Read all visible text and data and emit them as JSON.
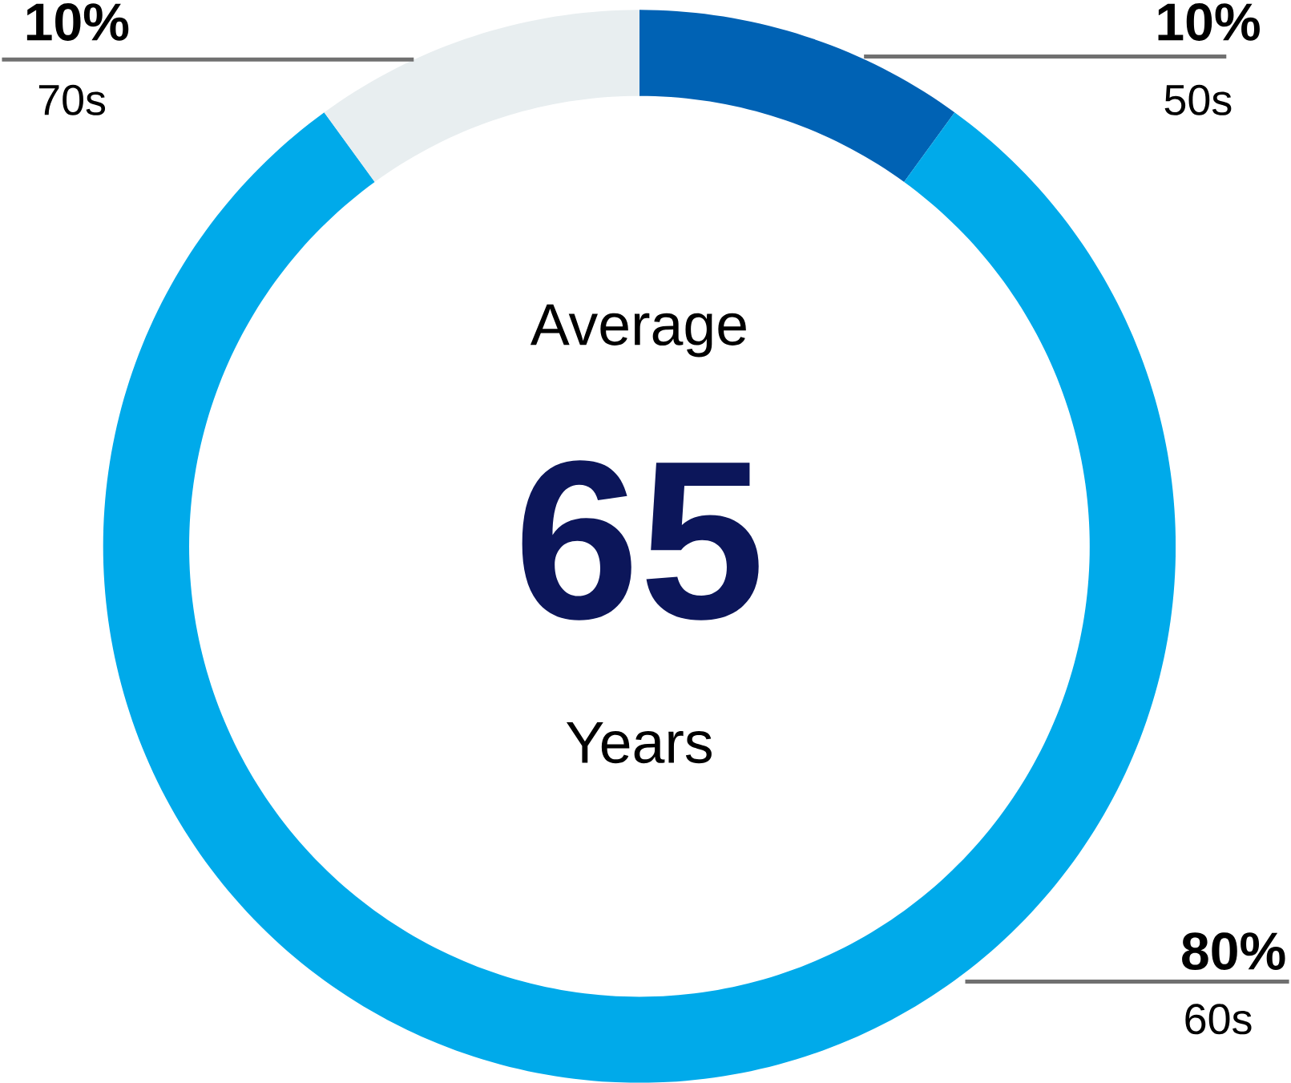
{
  "chart_data": {
    "type": "donut",
    "categories": [
      "50s",
      "60s",
      "70s"
    ],
    "values": [
      10,
      80,
      10
    ],
    "colors": [
      "#0062b4",
      "#00aaea",
      "#e8eef0"
    ],
    "value_labels": [
      "10%",
      "80%",
      "10%"
    ],
    "annotations": [
      "Average",
      "65",
      "Years"
    ]
  }
}
